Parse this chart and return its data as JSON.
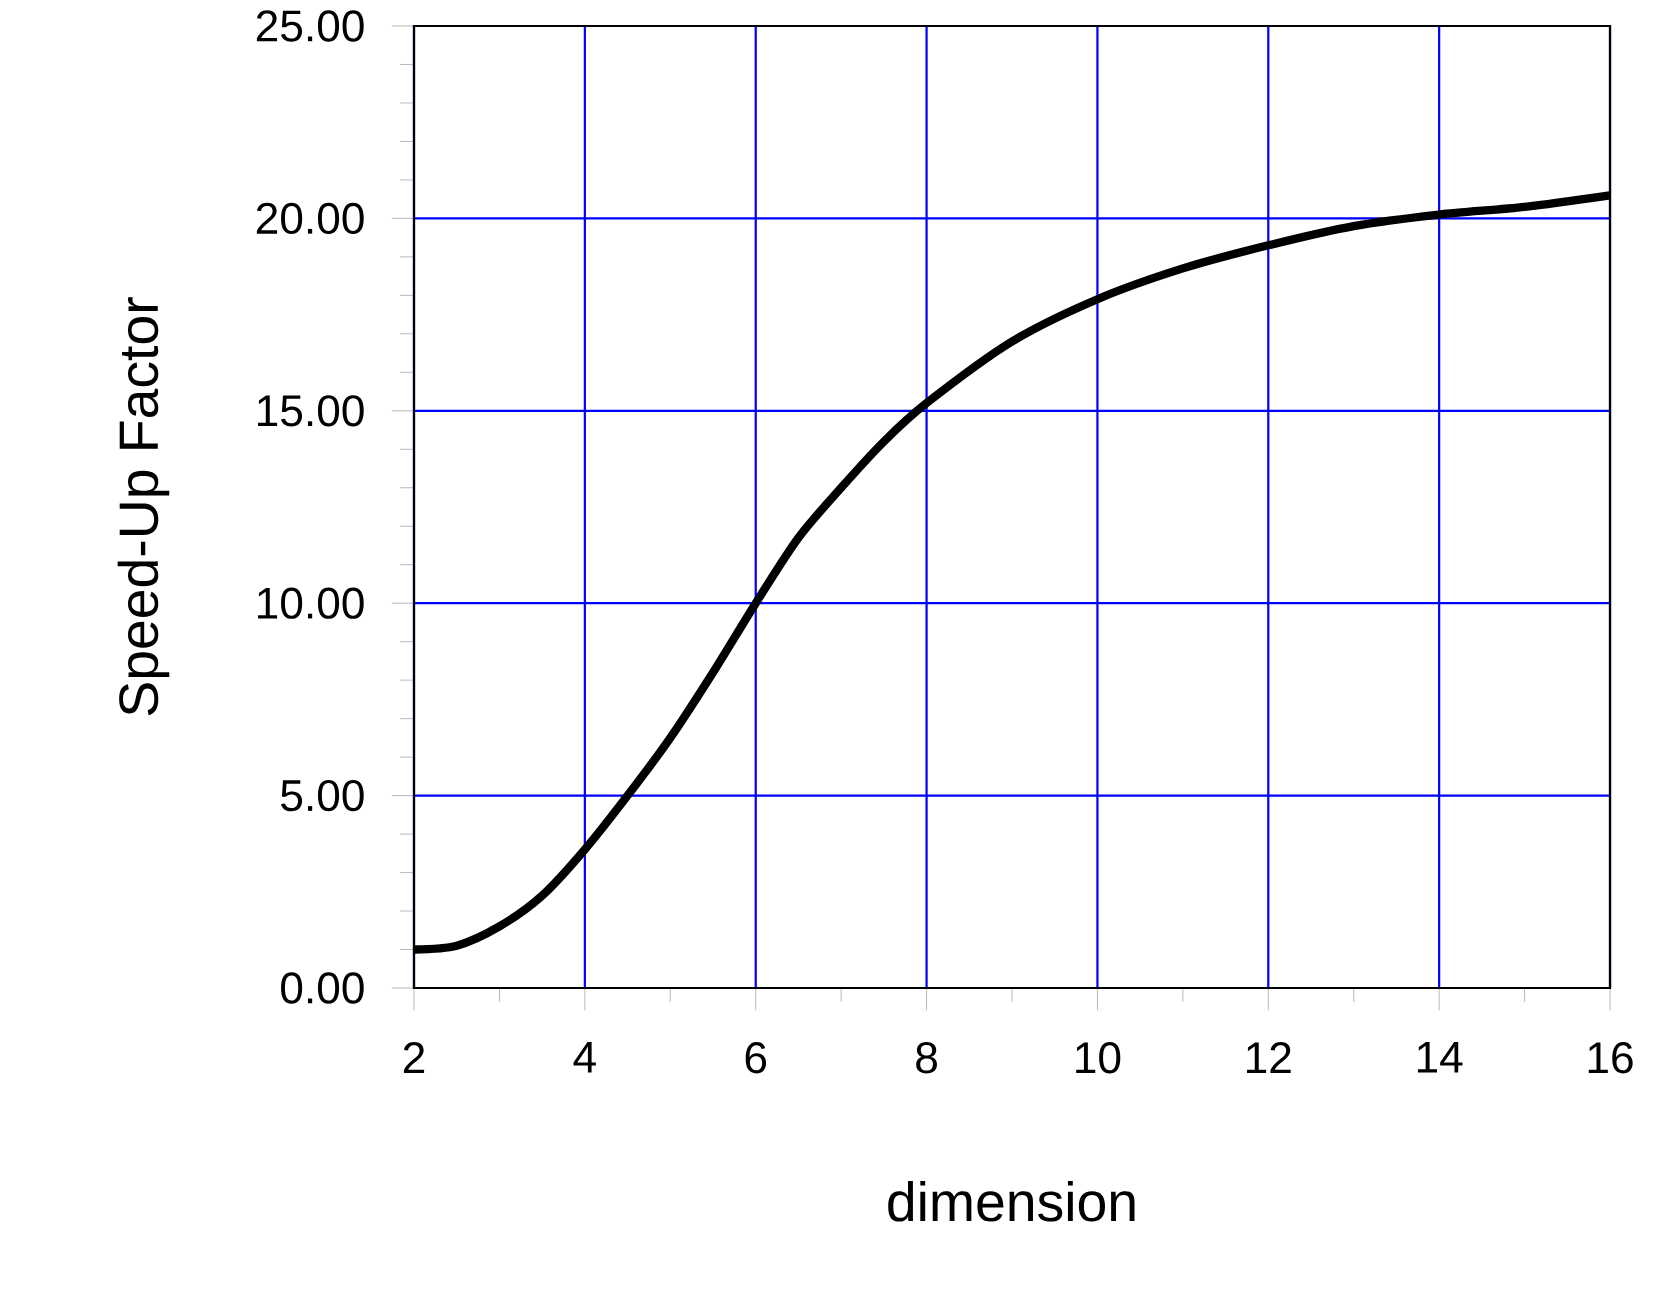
{
  "chart_data": {
    "type": "line",
    "xlabel": "dimension",
    "ylabel": "Speed-Up Factor",
    "x": [
      2,
      2.5,
      3,
      3.5,
      4,
      4.5,
      5,
      5.5,
      6,
      6.5,
      7,
      7.5,
      8,
      9,
      10,
      11,
      12,
      13,
      14,
      15,
      16
    ],
    "series": [
      {
        "color": "#000000",
        "values": [
          1.0,
          1.1,
          1.6,
          2.4,
          3.6,
          5.0,
          6.5,
          8.2,
          10.0,
          11.7,
          13.0,
          14.2,
          15.2,
          16.8,
          17.9,
          18.7,
          19.3,
          19.8,
          20.1,
          20.3,
          20.6
        ]
      }
    ],
    "xlim": [
      2,
      16
    ],
    "xticks": [
      2,
      4,
      6,
      8,
      10,
      12,
      14,
      16
    ],
    "ylim": [
      0,
      25
    ],
    "yticks": [
      {
        "value": 0,
        "label": "0.00"
      },
      {
        "value": 5,
        "label": "5.00"
      },
      {
        "value": 10,
        "label": "10.00"
      },
      {
        "value": 15,
        "label": "15.00"
      },
      {
        "value": 20,
        "label": "20.00"
      },
      {
        "value": 25,
        "label": "25.00"
      }
    ],
    "grid": true,
    "marker": "none",
    "line_style": "solid"
  }
}
